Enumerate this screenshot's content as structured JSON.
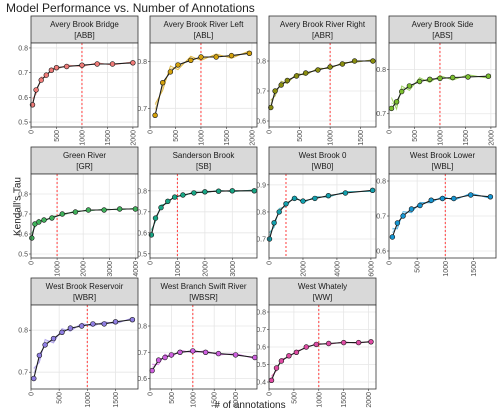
{
  "title": "Model Performance vs. Number of Annotations",
  "ylabel": "Kendall's Tau",
  "xlabel": "# of annotations",
  "reference_line_x": 1000,
  "chart_data": [
    {
      "type": "line",
      "title": "Avery Brook Bridge",
      "code": "[ABB]",
      "color": "#f07b78",
      "xlim": [
        0,
        2100
      ],
      "ylim": [
        0.48,
        0.82
      ],
      "xticks": [
        0,
        500,
        1000,
        1500,
        2000
      ],
      "yticks": [
        0.5,
        0.6,
        0.7,
        0.8
      ],
      "x": [
        30,
        100,
        200,
        300,
        400,
        500,
        700,
        1000,
        1300,
        1600,
        2000
      ],
      "y": [
        0.57,
        0.63,
        0.67,
        0.69,
        0.71,
        0.72,
        0.725,
        0.73,
        0.735,
        0.735,
        0.74
      ]
    },
    {
      "type": "line",
      "title": "Avery Brook River Left",
      "code": "[ABL]",
      "color": "#d4a10a",
      "xlim": [
        0,
        2100
      ],
      "ylim": [
        0.66,
        0.84
      ],
      "xticks": [
        0,
        500,
        1000,
        1500,
        2000
      ],
      "yticks": [
        0.7,
        0.8
      ],
      "x": [
        100,
        250,
        400,
        550,
        800,
        1000,
        1300,
        1600,
        1950
      ],
      "y": [
        0.685,
        0.755,
        0.778,
        0.793,
        0.803,
        0.81,
        0.81,
        0.813,
        0.818
      ]
    },
    {
      "type": "line",
      "title": "Avery Brook River Right",
      "code": "[ABR]",
      "color": "#8a8e0f",
      "xlim": [
        0,
        1750
      ],
      "ylim": [
        0.58,
        0.86
      ],
      "xticks": [
        0,
        500,
        1000,
        1500
      ],
      "yticks": [
        0.6,
        0.7,
        0.8
      ],
      "x": [
        30,
        100,
        200,
        300,
        450,
        600,
        800,
        1000,
        1200,
        1400,
        1700
      ],
      "y": [
        0.645,
        0.7,
        0.72,
        0.735,
        0.75,
        0.76,
        0.77,
        0.78,
        0.79,
        0.8,
        0.8
      ]
    },
    {
      "type": "line",
      "title": "Avery Brook Side",
      "code": "[ABS]",
      "color": "#7bbf2e",
      "xlim": [
        0,
        2100
      ],
      "ylim": [
        0.67,
        0.86
      ],
      "xticks": [
        0,
        500,
        1000,
        1500,
        2000
      ],
      "yticks": [
        0.7,
        0.8
      ],
      "x": [
        50,
        150,
        250,
        400,
        600,
        800,
        1000,
        1250,
        1550,
        1950
      ],
      "y": [
        0.712,
        0.727,
        0.75,
        0.763,
        0.773,
        0.778,
        0.78,
        0.782,
        0.783,
        0.785
      ]
    },
    {
      "type": "line",
      "title": "Green River",
      "code": "[GR]",
      "color": "#3fb15a",
      "xlim": [
        0,
        4100
      ],
      "ylim": [
        0.48,
        0.9
      ],
      "xticks": [
        0,
        1000,
        2000,
        3000,
        4000
      ],
      "yticks": [
        0.5,
        0.6,
        0.7,
        0.8
      ],
      "x": [
        30,
        150,
        300,
        500,
        800,
        1200,
        1700,
        2200,
        2800,
        3400,
        4000
      ],
      "y": [
        0.58,
        0.65,
        0.66,
        0.67,
        0.68,
        0.7,
        0.71,
        0.72,
        0.72,
        0.725,
        0.725
      ]
    },
    {
      "type": "line",
      "title": "Sanderson Brook",
      "code": "[SB]",
      "color": "#17a685",
      "xlim": [
        0,
        3900
      ],
      "ylim": [
        0.48,
        0.88
      ],
      "xticks": [
        0,
        1000,
        2000,
        3000
      ],
      "yticks": [
        0.5,
        0.6,
        0.7,
        0.8
      ],
      "x": [
        50,
        200,
        400,
        650,
        900,
        1200,
        1600,
        2000,
        2500,
        3000,
        3800
      ],
      "y": [
        0.59,
        0.67,
        0.72,
        0.75,
        0.77,
        0.78,
        0.79,
        0.795,
        0.798,
        0.8,
        0.8
      ]
    },
    {
      "type": "line",
      "title": "West Brook 0",
      "code": "[WB0]",
      "color": "#12a0ad",
      "xlim": [
        0,
        6300
      ],
      "ylim": [
        0.63,
        0.94
      ],
      "xticks": [
        0,
        2000,
        4000,
        6000
      ],
      "yticks": [
        0.7,
        0.8,
        0.9
      ],
      "x": [
        30,
        300,
        600,
        1000,
        1500,
        2000,
        2700,
        3500,
        4500,
        6100
      ],
      "y": [
        0.7,
        0.76,
        0.8,
        0.83,
        0.85,
        0.84,
        0.85,
        0.86,
        0.87,
        0.88
      ]
    },
    {
      "type": "line",
      "title": "West Brook Lower",
      "code": "[WBL]",
      "color": "#1596d3",
      "xlim": [
        0,
        1900
      ],
      "ylim": [
        0.58,
        0.82
      ],
      "xticks": [
        0,
        500,
        1000,
        1500
      ],
      "yticks": [
        0.6,
        0.7,
        0.8
      ],
      "x": [
        60,
        150,
        250,
        400,
        550,
        750,
        950,
        1150,
        1450,
        1800
      ],
      "y": [
        0.64,
        0.68,
        0.7,
        0.72,
        0.73,
        0.745,
        0.75,
        0.75,
        0.76,
        0.755
      ]
    },
    {
      "type": "line",
      "title": "West Brook Reservoir",
      "code": "[WBR]",
      "color": "#8f7ee3",
      "xlim": [
        0,
        1900
      ],
      "ylim": [
        0.66,
        0.86
      ],
      "xticks": [
        0,
        500,
        1000,
        1500
      ],
      "yticks": [
        0.7,
        0.8
      ],
      "x": [
        50,
        150,
        250,
        400,
        550,
        700,
        900,
        1100,
        1300,
        1500,
        1800
      ],
      "y": [
        0.685,
        0.74,
        0.765,
        0.78,
        0.795,
        0.805,
        0.81,
        0.815,
        0.815,
        0.82,
        0.825
      ]
    },
    {
      "type": "line",
      "title": "West Branch Swift River",
      "code": "[WBSR]",
      "color": "#cf5ee0",
      "xlim": [
        0,
        2500
      ],
      "ylim": [
        0.56,
        0.88
      ],
      "xticks": [
        0,
        500,
        1000,
        1500,
        2000
      ],
      "yticks": [
        0.6,
        0.7,
        0.8
      ],
      "x": [
        50,
        200,
        350,
        500,
        700,
        1000,
        1300,
        1600,
        2000,
        2450
      ],
      "y": [
        0.63,
        0.67,
        0.68,
        0.69,
        0.7,
        0.705,
        0.7,
        0.695,
        0.69,
        0.68
      ]
    },
    {
      "type": "line",
      "title": "West Whately",
      "code": "[WW]",
      "color": "#df4aa3",
      "xlim": [
        0,
        2150
      ],
      "ylim": [
        0.36,
        0.84
      ],
      "xticks": [
        0,
        500,
        1000,
        1500,
        2000
      ],
      "yticks": [
        0.4,
        0.5,
        0.6,
        0.7,
        0.8
      ],
      "x": [
        50,
        150,
        250,
        400,
        550,
        750,
        950,
        1200,
        1500,
        1800,
        2050
      ],
      "y": [
        0.41,
        0.48,
        0.52,
        0.55,
        0.57,
        0.6,
        0.615,
        0.62,
        0.625,
        0.625,
        0.63
      ]
    }
  ]
}
